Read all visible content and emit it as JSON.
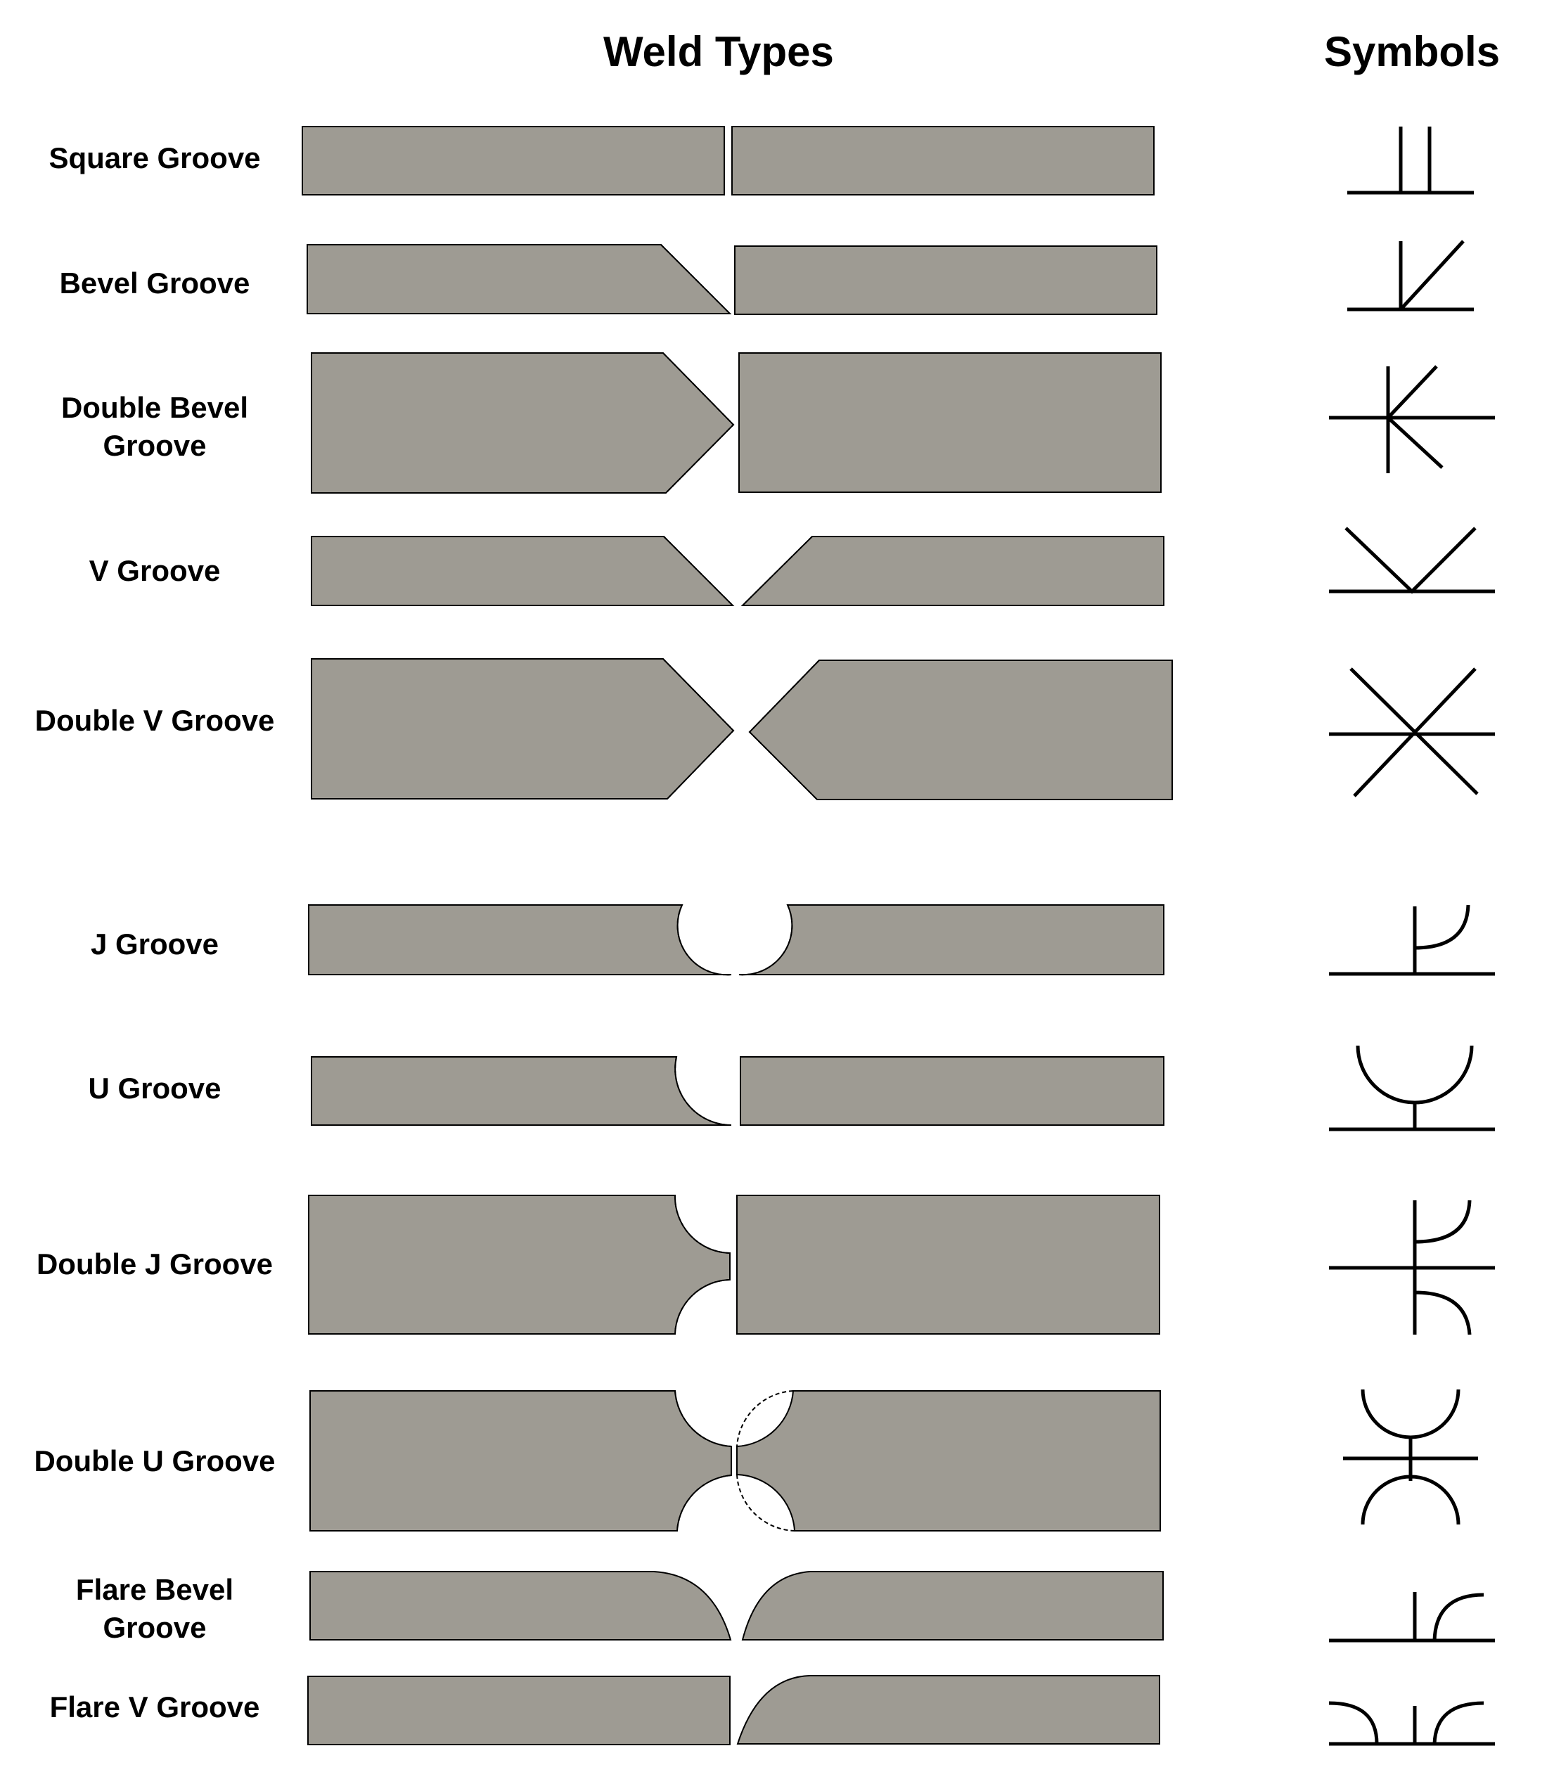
{
  "headers": {
    "weld_types": "Weld Types",
    "symbols": "Symbols"
  },
  "rows": [
    {
      "id": "square-groove",
      "label": "Square Groove"
    },
    {
      "id": "bevel-groove",
      "label": "Bevel Groove"
    },
    {
      "id": "double-bevel-groove",
      "label": "Double Bevel\nGroove"
    },
    {
      "id": "v-groove",
      "label": "V Groove"
    },
    {
      "id": "double-v-groove",
      "label": "Double V Groove"
    },
    {
      "id": "j-groove",
      "label": "J Groove"
    },
    {
      "id": "u-groove",
      "label": "U Groove"
    },
    {
      "id": "double-j-groove",
      "label": "Double J Groove"
    },
    {
      "id": "double-u-groove",
      "label": "Double U Groove"
    },
    {
      "id": "flare-bevel-groove",
      "label": "Flare Bevel\nGroove"
    },
    {
      "id": "flare-v-groove",
      "label": "Flare V Groove"
    }
  ],
  "colors": {
    "plate": "#9e9b93",
    "outline": "#000000",
    "background": "#ffffff"
  }
}
